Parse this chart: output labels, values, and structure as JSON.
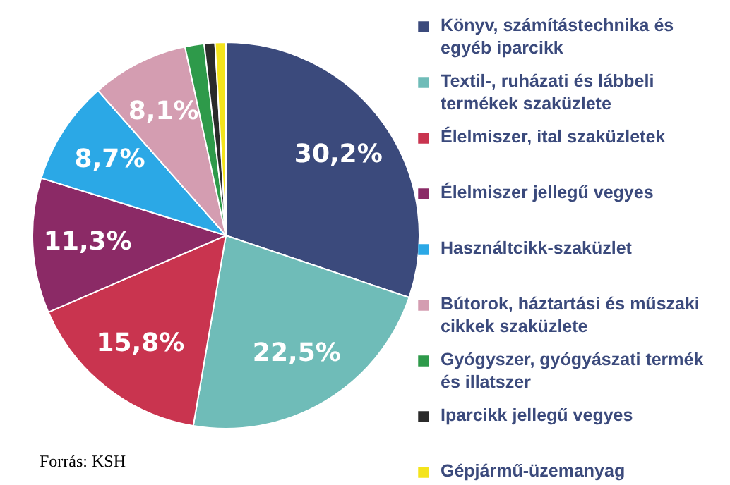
{
  "chart_data": {
    "type": "pie",
    "categories": [
      "Könyv, számítástechnika és egyéb iparcikk",
      "Textil-, ruházati és lábbeli termékek szaküzlete",
      "Élelmiszer, ital szaküzletek",
      "Élelmiszer jellegű vegyes",
      "Használtcikk-szaküzlet",
      "Bútorok, háztartási és műszaki cikkek szaküzlete",
      "Gyógyszer, gyógyászati termék és illatszer",
      "Iparcikk jellegű vegyes",
      "Gépjármű-üzemanyag"
    ],
    "values": [
      30.2,
      22.5,
      15.8,
      11.3,
      8.7,
      8.1,
      1.6,
      0.9,
      0.9
    ],
    "value_labels": [
      "30,2%",
      "22,5%",
      "15,8%",
      "11,3%",
      "8,7%",
      "8,1%",
      null,
      null,
      null
    ],
    "colors": [
      "#3b4a7c",
      "#6fbcb8",
      "#c9344f",
      "#8b2a66",
      "#2ba8e6",
      "#d49db1",
      "#2e9a4a",
      "#2b2b2b",
      "#f4e41c"
    ],
    "legend": "right",
    "annotations": [
      "Forrás: KSH"
    ]
  }
}
